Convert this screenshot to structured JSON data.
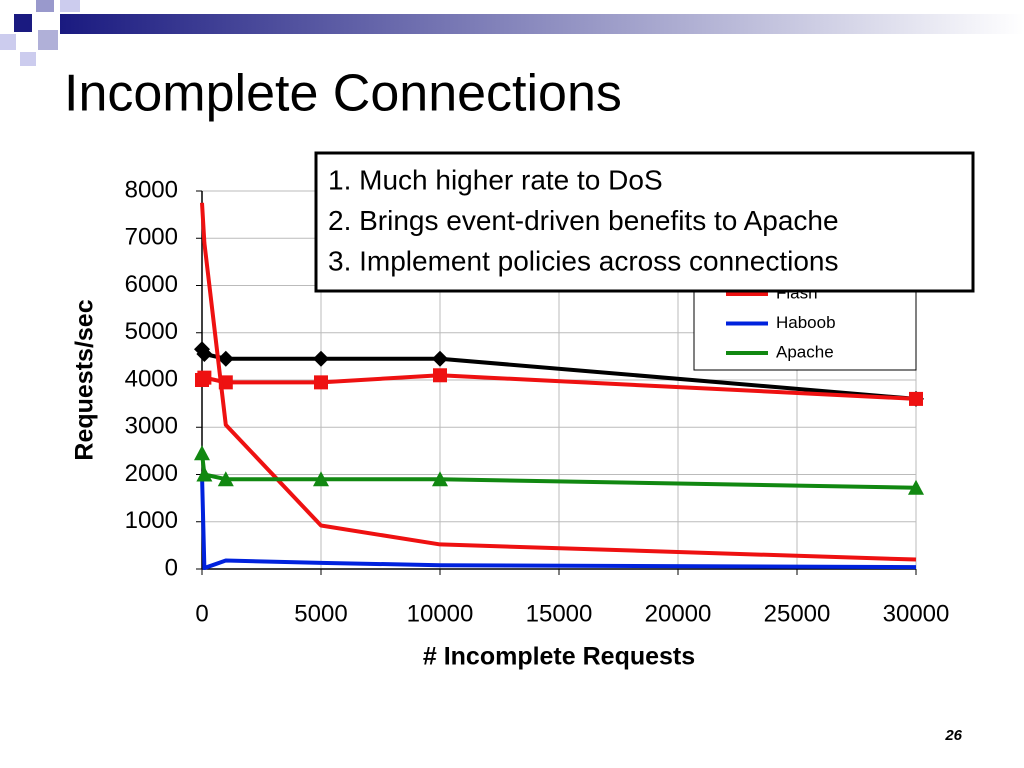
{
  "slide_title": "Incomplete Connections",
  "page_number": "26",
  "callout": [
    "1. Much higher rate to DoS",
    "2. Brings event-driven benefits to Apache",
    "3. Implement policies across connections"
  ],
  "chart_data": {
    "type": "line",
    "x_label": "# Incomplete Requests",
    "y_label": "Requests/sec",
    "x": [
      0,
      100,
      1000,
      5000,
      10000,
      30000
    ],
    "xlim": [
      0,
      30000
    ],
    "xticks": [
      0,
      5000,
      10000,
      15000,
      20000,
      25000,
      30000
    ],
    "ylim": [
      0,
      8000
    ],
    "yticks": [
      0,
      1000,
      2000,
      3000,
      4000,
      5000,
      6000,
      7000,
      8000
    ],
    "grid": true,
    "series": [
      {
        "color": "#000000",
        "marker": "diamond",
        "values": [
          4650,
          4550,
          4450,
          4450,
          4450,
          3600
        ]
      },
      {
        "color": "#ee1111",
        "marker": "square",
        "values": [
          4000,
          4050,
          3950,
          3950,
          4100,
          3600
        ]
      },
      {
        "name": "Flash",
        "color": "#ee1111",
        "marker": "none",
        "values": [
          7750,
          6900,
          3050,
          920,
          520,
          200
        ]
      },
      {
        "name": "Haboob",
        "color": "#0022dd",
        "marker": "none",
        "values": [
          2000,
          20,
          180,
          130,
          80,
          40
        ]
      },
      {
        "name": "Apache",
        "color": "#118811",
        "marker": "triangle",
        "values": [
          2450,
          2000,
          1900,
          1900,
          1900,
          1720
        ]
      }
    ]
  }
}
